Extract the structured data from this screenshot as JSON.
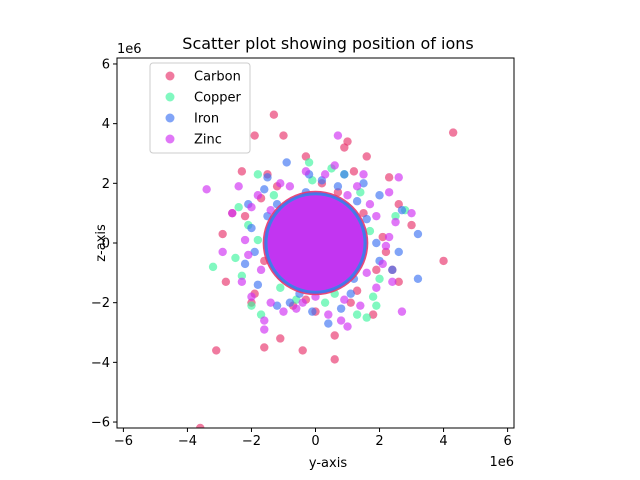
{
  "chart_data": {
    "type": "scatter",
    "title": "Scatter plot showing position of ions",
    "xlabel": "y-axis",
    "ylabel": "z-axis",
    "x_offset_label": "1e6",
    "y_offset_label": "1e6",
    "xlim": [
      -6.2,
      6.2
    ],
    "ylim": [
      -6.2,
      6.2
    ],
    "xticks": [
      -6,
      -4,
      -2,
      0,
      2,
      4,
      6
    ],
    "yticks": [
      -6,
      -4,
      -2,
      0,
      2,
      4,
      6
    ],
    "grid": false,
    "legend_position": "upper-left",
    "series": [
      {
        "name": "Carbon",
        "color": "#e8336b",
        "points": [
          [
            -1.3,
            4.3
          ],
          [
            -1.9,
            3.6
          ],
          [
            -1.0,
            3.6
          ],
          [
            1.0,
            3.4
          ],
          [
            1.6,
            2.9
          ],
          [
            -0.3,
            2.9
          ],
          [
            4.3,
            3.7
          ],
          [
            0.9,
            3.2
          ],
          [
            -2.3,
            2.4
          ],
          [
            -1.5,
            2.3
          ],
          [
            2.3,
            2.2
          ],
          [
            -2.6,
            1.0
          ],
          [
            2.6,
            1.3
          ],
          [
            3.0,
            0.6
          ],
          [
            4.0,
            -0.6
          ],
          [
            -2.8,
            -1.3
          ],
          [
            -1.9,
            -1.7
          ],
          [
            -2.0,
            -2.0
          ],
          [
            1.8,
            -2.4
          ],
          [
            2.6,
            -1.3
          ],
          [
            -1.1,
            -3.2
          ],
          [
            -1.6,
            -3.5
          ],
          [
            -0.4,
            -3.6
          ],
          [
            0.6,
            -3.1
          ],
          [
            0.6,
            -3.9
          ],
          [
            -3.1,
            -3.6
          ],
          [
            -3.6,
            -6.2
          ],
          [
            -2.9,
            0.3
          ],
          [
            1.2,
            2.4
          ],
          [
            -1.2,
            1.9
          ],
          [
            1.9,
            -0.9
          ],
          [
            -0.7,
            -2.1
          ],
          [
            0.2,
            2.0
          ],
          [
            -2.2,
            0.9
          ],
          [
            2.2,
            -0.3
          ],
          [
            -1.6,
            -0.6
          ],
          [
            1.3,
            -1.6
          ],
          [
            0.7,
            1.7
          ],
          [
            -0.3,
            -1.9
          ],
          [
            2.1,
            0.2
          ],
          [
            1.5,
            1.0
          ],
          [
            -1.0,
            -1.2
          ],
          [
            0.4,
            -1.5
          ],
          [
            -1.7,
            1.5
          ],
          [
            1.1,
            -2.0
          ],
          [
            -0.8,
            1.3
          ],
          [
            0.0,
            -2.3
          ],
          [
            2.4,
            -0.9
          ]
        ]
      },
      {
        "name": "Copper",
        "color": "#3ef59e",
        "points": [
          [
            -0.2,
            2.7
          ],
          [
            0.5,
            2.5
          ],
          [
            -1.8,
            2.3
          ],
          [
            -2.4,
            1.2
          ],
          [
            -3.2,
            -0.8
          ],
          [
            -2.3,
            -1.1
          ],
          [
            -1.7,
            -2.4
          ],
          [
            1.3,
            -2.4
          ],
          [
            1.6,
            -2.5
          ],
          [
            1.9,
            -2.1
          ],
          [
            2.8,
            1.1
          ],
          [
            -2.0,
            -2.1
          ],
          [
            1.8,
            -1.8
          ],
          [
            2.5,
            0.9
          ],
          [
            -2.1,
            0.6
          ],
          [
            0.9,
            2.3
          ],
          [
            -1.3,
            1.6
          ],
          [
            1.4,
            1.7
          ],
          [
            -0.6,
            -1.9
          ],
          [
            0.3,
            -2.0
          ],
          [
            -2.5,
            -0.5
          ],
          [
            2.0,
            -1.2
          ],
          [
            -1.1,
            -1.5
          ],
          [
            1.0,
            1.2
          ],
          [
            -0.1,
            2.1
          ],
          [
            1.7,
            0.4
          ],
          [
            -1.8,
            0.1
          ],
          [
            0.6,
            -1.7
          ]
        ]
      },
      {
        "name": "Iron",
        "color": "#3d73f2",
        "points": [
          [
            -0.9,
            2.7
          ],
          [
            -0.2,
            2.3
          ],
          [
            0.9,
            2.3
          ],
          [
            -1.5,
            2.2
          ],
          [
            1.5,
            2.0
          ],
          [
            -2.1,
            1.3
          ],
          [
            2.7,
            1.1
          ],
          [
            3.2,
            0.3
          ],
          [
            2.6,
            -0.3
          ],
          [
            3.2,
            -1.2
          ],
          [
            2.4,
            -0.9
          ],
          [
            -1.8,
            -1.4
          ],
          [
            -1.2,
            -2.1
          ],
          [
            0.8,
            -2.2
          ],
          [
            -0.1,
            -2.3
          ],
          [
            0.4,
            -2.7
          ],
          [
            -2.0,
            0.5
          ],
          [
            2.0,
            1.6
          ],
          [
            -1.9,
            -0.3
          ],
          [
            -1.2,
            1.3
          ],
          [
            1.3,
            1.4
          ],
          [
            -0.8,
            -2.0
          ],
          [
            1.1,
            -1.7
          ],
          [
            2.0,
            -0.6
          ],
          [
            -2.2,
            -0.7
          ],
          [
            0.2,
            2.1
          ],
          [
            -0.5,
            -1.7
          ],
          [
            1.6,
            0.8
          ],
          [
            -1.5,
            0.9
          ],
          [
            0.7,
            1.9
          ],
          [
            -1.1,
            -1.1
          ],
          [
            1.2,
            -1.2
          ],
          [
            -1.6,
            1.8
          ],
          [
            1.9,
            0.0
          ],
          [
            -0.3,
            1.7
          ],
          [
            0.5,
            -1.5
          ]
        ]
      },
      {
        "name": "Zinc",
        "color": "#d02ef2",
        "points": [
          [
            0.7,
            3.6
          ],
          [
            -3.4,
            1.8
          ],
          [
            -2.4,
            1.9
          ],
          [
            1.5,
            2.3
          ],
          [
            2.6,
            2.2
          ],
          [
            2.3,
            1.7
          ],
          [
            -2.6,
            1.0
          ],
          [
            3.0,
            1.0
          ],
          [
            2.5,
            0.7
          ],
          [
            2.3,
            0.2
          ],
          [
            -2.9,
            -0.3
          ],
          [
            -2.1,
            -0.4
          ],
          [
            -2.0,
            -1.8
          ],
          [
            2.4,
            -1.3
          ],
          [
            1.9,
            -1.5
          ],
          [
            2.7,
            -2.3
          ],
          [
            1.0,
            -2.8
          ],
          [
            0.8,
            -2.6
          ],
          [
            -1.6,
            -2.6
          ],
          [
            -1.6,
            -2.9
          ],
          [
            -1.4,
            -2.0
          ],
          [
            0.0,
            -1.8
          ],
          [
            -1.1,
            2.0
          ],
          [
            -0.3,
            2.4
          ],
          [
            0.6,
            2.6
          ],
          [
            1.3,
            1.9
          ],
          [
            -1.8,
            1.6
          ],
          [
            -2.2,
            0.1
          ],
          [
            2.1,
            -0.7
          ],
          [
            -0.6,
            -2.2
          ],
          [
            0.4,
            -2.4
          ],
          [
            1.4,
            -2.1
          ],
          [
            -1.0,
            -2.3
          ],
          [
            0.3,
            2.3
          ],
          [
            -1.4,
            1.1
          ],
          [
            1.7,
            1.3
          ],
          [
            -2.3,
            -1.3
          ],
          [
            2.2,
            -0.1
          ],
          [
            -0.8,
            1.9
          ],
          [
            1.0,
            1.6
          ],
          [
            -1.7,
            -0.9
          ],
          [
            1.6,
            -1.0
          ],
          [
            -0.4,
            -2.0
          ],
          [
            0.9,
            -1.9
          ],
          [
            -2.0,
            1.2
          ],
          [
            1.9,
            0.9
          ]
        ]
      }
    ]
  }
}
